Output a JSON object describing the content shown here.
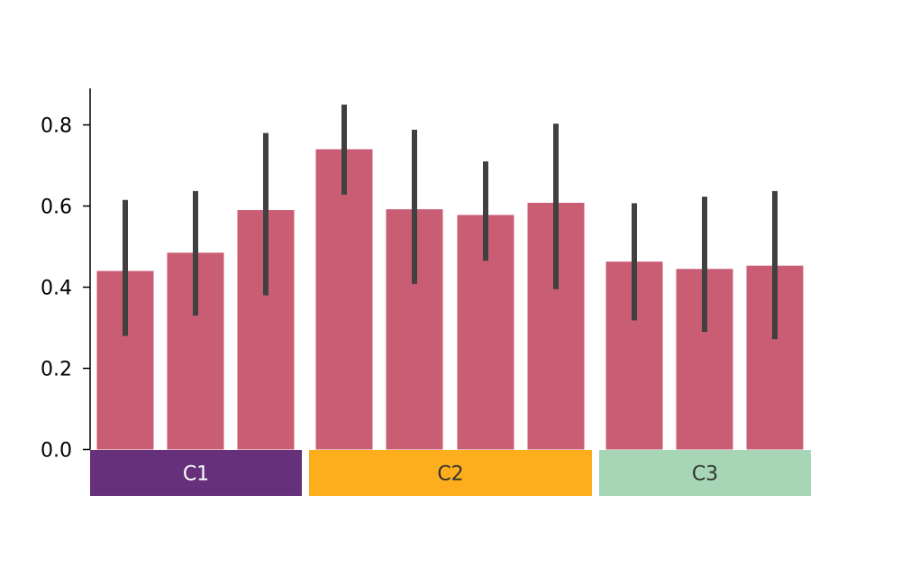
{
  "chart_data": {
    "type": "bar",
    "ylim": [
      0,
      0.89
    ],
    "yticks": [
      "0.0",
      "0.2",
      "0.4",
      "0.6",
      "0.8"
    ],
    "bar_color": "#c85d74",
    "errorbar_color": "#404040",
    "groups": [
      {
        "label": "C1",
        "color": "#66307b",
        "text_color": "#ffffff",
        "values": [
          0.44,
          0.485,
          0.59
        ],
        "err_low": [
          0.28,
          0.33,
          0.38
        ],
        "err_high": [
          0.615,
          0.637,
          0.78
        ]
      },
      {
        "label": "C2",
        "color": "#fdae1d",
        "text_color": "#333333",
        "values": [
          0.74,
          0.592,
          0.578,
          0.608
        ],
        "err_low": [
          0.628,
          0.408,
          0.465,
          0.395
        ],
        "err_high": [
          0.85,
          0.788,
          0.71,
          0.803
        ]
      },
      {
        "label": "C3",
        "color": "#a7d6b7",
        "text_color": "#333333",
        "values": [
          0.463,
          0.445,
          0.453
        ],
        "err_low": [
          0.318,
          0.29,
          0.272
        ],
        "err_high": [
          0.607,
          0.623,
          0.637
        ]
      }
    ]
  }
}
